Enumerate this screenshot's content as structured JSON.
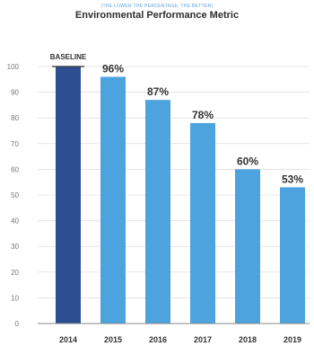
{
  "header": {
    "subtitle": "(THE LOWER THE PERCENTAGE, THE BETTER)",
    "title": "Environmental Performance Metric"
  },
  "chart_data": {
    "type": "bar",
    "title": "Environmental Performance Metric",
    "subtitle": "(THE LOWER THE PERCENTAGE, THE BETTER)",
    "categories": [
      "2014",
      "2015",
      "2016",
      "2017",
      "2018",
      "2019"
    ],
    "values": [
      100,
      96,
      87,
      78,
      60,
      53
    ],
    "value_labels": [
      "BASELINE",
      "96%",
      "87%",
      "78%",
      "60%",
      "53%"
    ],
    "yticks": [
      "0",
      "10",
      "20",
      "30",
      "40",
      "50",
      "60",
      "70",
      "80",
      "90",
      "100"
    ],
    "ylim": [
      0,
      100
    ],
    "xlabel": "",
    "ylabel": "",
    "grid": true,
    "colors": {
      "baseline": "#2b4f91",
      "bar": "#4da3dd",
      "grid": "#d5d5d5",
      "axis": "#888888"
    }
  }
}
